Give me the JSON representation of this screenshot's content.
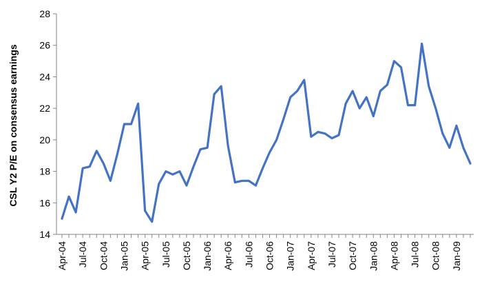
{
  "chart_data": {
    "type": "line",
    "title": "",
    "xlabel": "",
    "ylabel": "CSL Y2 P/E on consensus earnings",
    "ylim": [
      14,
      28
    ],
    "yticks": [
      14,
      16,
      18,
      20,
      22,
      24,
      26,
      28
    ],
    "grid": false,
    "legend": "none",
    "x_tick_labels": [
      "Apr-04",
      "Jul-04",
      "Oct-04",
      "Jan-05",
      "Apr-05",
      "Jul-05",
      "Oct-05",
      "Jan-06",
      "Apr-06",
      "Jul-06",
      "Oct-06",
      "Jan-07",
      "Apr-07",
      "Jul-07",
      "Oct-07",
      "Jan-08",
      "Apr-08",
      "Jul-08",
      "Oct-08",
      "Jan-09"
    ],
    "x": [
      "Apr-04",
      "May-04",
      "Jun-04",
      "Jul-04",
      "Aug-04",
      "Sep-04",
      "Oct-04",
      "Nov-04",
      "Dec-04",
      "Jan-05",
      "Feb-05",
      "Mar-05",
      "Apr-05",
      "May-05",
      "Jun-05",
      "Jul-05",
      "Aug-05",
      "Sep-05",
      "Oct-05",
      "Nov-05",
      "Dec-05",
      "Jan-06",
      "Feb-06",
      "Mar-06",
      "Apr-06",
      "May-06",
      "Jun-06",
      "Jul-06",
      "Aug-06",
      "Sep-06",
      "Oct-06",
      "Nov-06",
      "Dec-06",
      "Jan-07",
      "Feb-07",
      "Mar-07",
      "Apr-07",
      "May-07",
      "Jun-07",
      "Jul-07",
      "Aug-07",
      "Sep-07",
      "Oct-07",
      "Nov-07",
      "Dec-07",
      "Jan-08",
      "Feb-08",
      "Mar-08",
      "Apr-08",
      "May-08",
      "Jun-08",
      "Jul-08",
      "Aug-08",
      "Sep-08",
      "Oct-08",
      "Nov-08",
      "Dec-08",
      "Jan-09",
      "Feb-09",
      "Mar-09"
    ],
    "series": [
      {
        "values": [
          15.0,
          16.4,
          15.4,
          18.2,
          18.3,
          19.3,
          18.5,
          17.4,
          19.1,
          21.0,
          21.0,
          22.3,
          15.5,
          14.8,
          17.2,
          18.0,
          17.8,
          18.0,
          17.1,
          18.3,
          19.4,
          19.5,
          22.9,
          23.4,
          19.6,
          17.3,
          17.4,
          17.4,
          17.1,
          18.2,
          19.2,
          20.0,
          21.3,
          22.7,
          23.1,
          23.8,
          20.2,
          20.5,
          20.4,
          20.1,
          20.3,
          22.3,
          23.1,
          22.0,
          22.7,
          21.5,
          23.1,
          23.5,
          25.0,
          24.6,
          22.2,
          22.2,
          26.1,
          23.4,
          22.0,
          20.4,
          19.5,
          20.9,
          19.5,
          18.5
        ],
        "color": "#4472C4"
      }
    ]
  }
}
